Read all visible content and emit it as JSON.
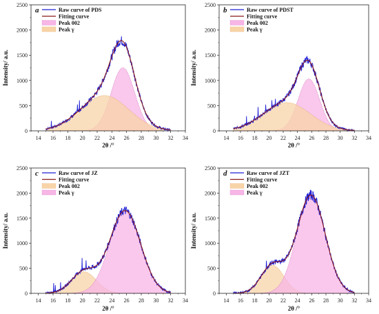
{
  "colors": {
    "raw": "#1f1fd6",
    "fit": "#8b1a1a",
    "peak_pink_fill": "#f7b6e6",
    "peak_pink_edge": "#d77ac4",
    "peak_orange_fill": "#f8d4a8",
    "peak_orange_edge": "#e6a86a"
  },
  "chart_data": [
    {
      "type": "area",
      "panel_label": "a",
      "xlabel": "2θ /°",
      "ylabel": "Intensity/ a.u.",
      "xlim": [
        13,
        34
      ],
      "ylim": [
        0,
        2500
      ],
      "x_ticks": [
        14,
        16,
        18,
        20,
        22,
        24,
        26,
        28,
        30,
        32,
        34
      ],
      "y_ticks": [
        0,
        500,
        1000,
        1500,
        2000,
        2500
      ],
      "legend_position": "top-left",
      "legend": [
        {
          "label": "Raw curve of PDS",
          "kind": "raw"
        },
        {
          "label": "Fitting curve",
          "kind": "fit"
        },
        {
          "label": "Peak 002",
          "kind": "pink"
        },
        {
          "label": "Peak  γ",
          "kind": "orange"
        }
      ],
      "series": [
        {
          "name": "Peak 002",
          "kind": "peak",
          "color": "pink",
          "center": 25.5,
          "amplitude": 1250,
          "sigma": 1.6,
          "range": [
            15,
            31
          ]
        },
        {
          "name": "Peak  γ",
          "kind": "peak",
          "color": "orange",
          "center": 23.0,
          "amplitude": 700,
          "sigma": 3.3,
          "range": [
            15,
            31
          ]
        }
      ],
      "raw_range": [
        15,
        32
      ]
    },
    {
      "type": "area",
      "panel_label": "b",
      "xlabel": "2θ /°",
      "ylabel": "Intensity/ a.u.",
      "xlim": [
        13,
        34
      ],
      "ylim": [
        0,
        2500
      ],
      "x_ticks": [
        14,
        16,
        18,
        20,
        22,
        24,
        26,
        28,
        30,
        32,
        34
      ],
      "y_ticks": [
        0,
        500,
        1000,
        1500,
        2000,
        2500
      ],
      "legend_position": "top-left",
      "legend": [
        {
          "label": "Raw curve of PDST",
          "kind": "raw"
        },
        {
          "label": "Fitting curve",
          "kind": "fit"
        },
        {
          "label": "Peak 002",
          "kind": "pink"
        },
        {
          "label": "Peak  γ",
          "kind": "orange"
        }
      ],
      "series": [
        {
          "name": "Peak 002",
          "kind": "peak",
          "color": "pink",
          "center": 25.6,
          "amplitude": 1030,
          "sigma": 1.5,
          "range": [
            15,
            31
          ]
        },
        {
          "name": "Peak  γ",
          "kind": "peak",
          "color": "orange",
          "center": 22.5,
          "amplitude": 560,
          "sigma": 3.3,
          "range": [
            15,
            31
          ]
        }
      ],
      "raw_range": [
        15,
        32
      ]
    },
    {
      "type": "area",
      "panel_label": "c",
      "xlabel": "2θ /°",
      "ylabel": "Intensity/ a.u.",
      "xlim": [
        13,
        34
      ],
      "ylim": [
        0,
        2500
      ],
      "x_ticks": [
        14,
        16,
        18,
        20,
        22,
        24,
        26,
        28,
        30,
        32,
        34
      ],
      "y_ticks": [
        0,
        500,
        1000,
        1500,
        2000,
        2500
      ],
      "legend_position": "top-left",
      "legend": [
        {
          "label": "Raw curve of JZ",
          "kind": "raw"
        },
        {
          "label": "Fitting curve",
          "kind": "fit"
        },
        {
          "label": "Peak 002",
          "kind": "orange"
        },
        {
          "label": "Peak  γ",
          "kind": "pink"
        }
      ],
      "series": [
        {
          "name": "Peak 002",
          "kind": "peak",
          "color": "orange",
          "center": 20.2,
          "amplitude": 430,
          "sigma": 1.7,
          "range": [
            15,
            32
          ]
        },
        {
          "name": "Peak  γ",
          "kind": "peak",
          "color": "pink",
          "center": 25.8,
          "amplitude": 1650,
          "sigma": 2.1,
          "range": [
            15,
            32
          ]
        }
      ],
      "raw_range": [
        15,
        32
      ]
    },
    {
      "type": "area",
      "panel_label": "d",
      "xlabel": "2θ /°",
      "ylabel": "Intensity/ a.u.",
      "xlim": [
        13,
        34
      ],
      "ylim": [
        0,
        2500
      ],
      "x_ticks": [
        14,
        16,
        18,
        20,
        22,
        24,
        26,
        28,
        30,
        32,
        34
      ],
      "y_ticks": [
        0,
        500,
        1000,
        1500,
        2000,
        2500
      ],
      "legend_position": "top-left",
      "legend": [
        {
          "label": "Raw curve of JZT",
          "kind": "raw"
        },
        {
          "label": "Fitting curve",
          "kind": "fit"
        },
        {
          "label": "Peak 002",
          "kind": "orange"
        },
        {
          "label": "Peak  γ",
          "kind": "pink"
        }
      ],
      "series": [
        {
          "name": "Peak 002",
          "kind": "peak",
          "color": "orange",
          "center": 20.5,
          "amplitude": 560,
          "sigma": 1.6,
          "range": [
            15,
            32
          ]
        },
        {
          "name": "Peak  γ",
          "kind": "peak",
          "color": "pink",
          "center": 25.9,
          "amplitude": 1960,
          "sigma": 2.0,
          "range": [
            15,
            32
          ]
        }
      ],
      "raw_range": [
        15,
        32
      ]
    }
  ]
}
